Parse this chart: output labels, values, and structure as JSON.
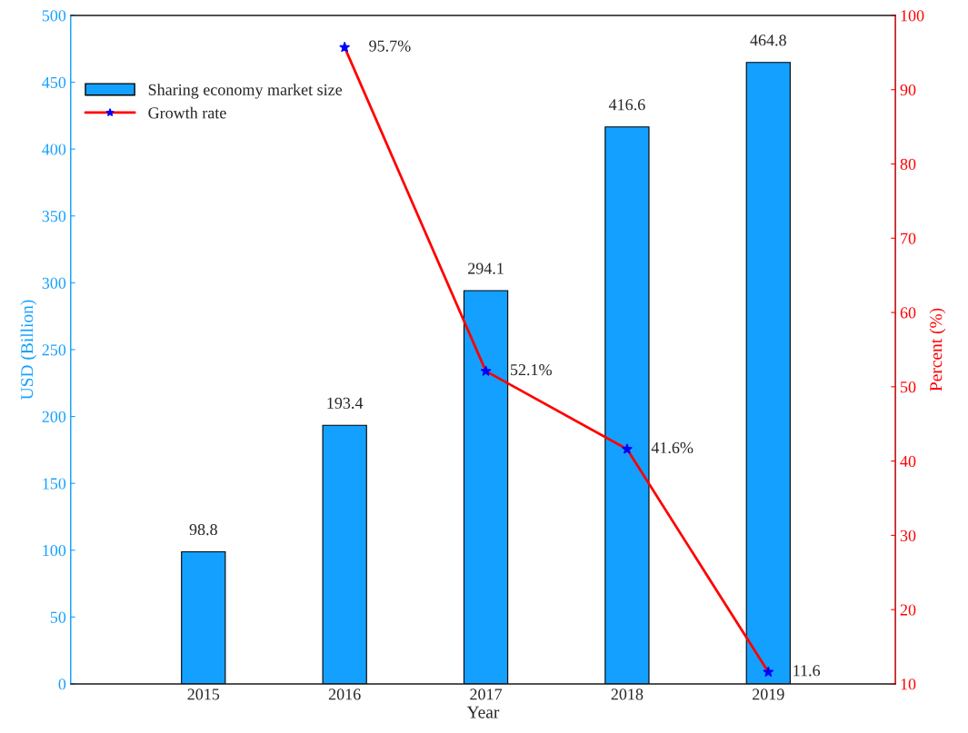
{
  "chart_data": {
    "type": "bar",
    "xlabel": "Year",
    "ylabel": "USD (Billion)",
    "y2label": "Percent (%)",
    "x": [
      2015,
      2016,
      2017,
      2018,
      2019
    ],
    "xlim": [
      2014.06,
      2019.9
    ],
    "xticks": [
      2015,
      2016,
      2017,
      2018,
      2019
    ],
    "ylim": [
      0,
      500
    ],
    "yticks": [
      0,
      50,
      100,
      150,
      200,
      250,
      300,
      350,
      400,
      450,
      500
    ],
    "y2lim": [
      10,
      100
    ],
    "y2ticks": [
      10,
      20,
      30,
      40,
      50,
      60,
      70,
      80,
      90,
      100
    ],
    "series": [
      {
        "name": "Sharing economy market size",
        "color": "#14a0ff",
        "values": [
          98.8,
          193.4,
          294.1,
          416.6,
          464.8
        ],
        "value_labels": [
          "98.8",
          "193.4",
          "294.1",
          "416.6",
          "464.8"
        ]
      },
      {
        "name": "Growth rate",
        "type": "line",
        "axis": "y2",
        "color": "#ff0000",
        "marker": "star",
        "values": [
          null,
          95.7,
          52.1,
          41.6,
          11.6
        ],
        "value_labels": [
          null,
          "95.7%",
          "52.1%",
          "41.6%",
          "11.6"
        ]
      }
    ],
    "legend": "top left",
    "grid": false
  }
}
